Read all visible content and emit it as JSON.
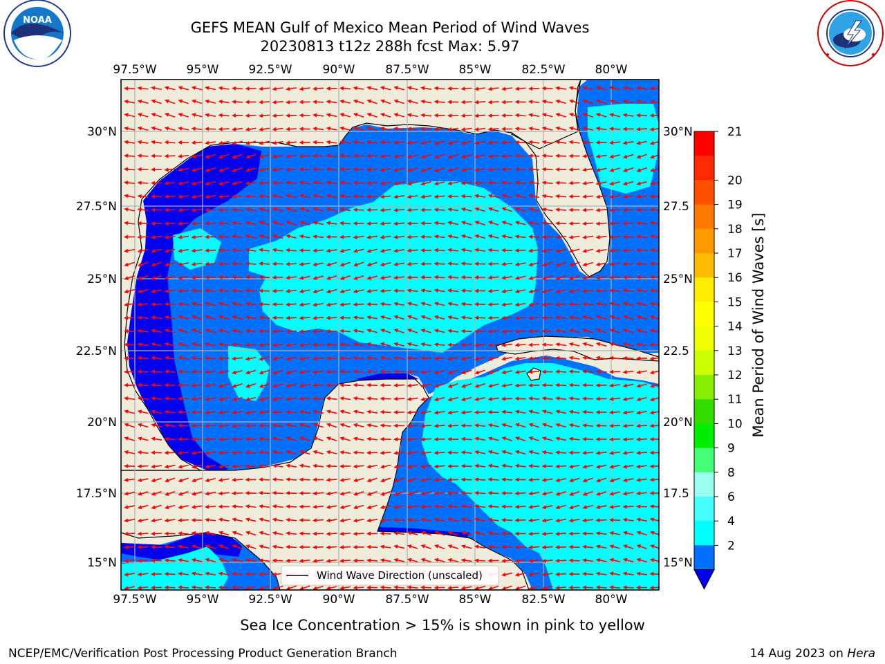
{
  "title": {
    "line1": "GEFS MEAN Gulf of Mexico Mean Period of Wind Waves",
    "line2": "20230813 t12z 288h fcst   Max: 5.97"
  },
  "logos": {
    "noaa_text": "NOAA",
    "noaa_ring": "NATIONAL OCEANIC AND ATMOSPHERIC ADMINISTRATION · U.S. DEPARTMENT OF COMMERCE",
    "nws_ring": "NATIONAL WEATHER SERVICE"
  },
  "map": {
    "lon_labels": [
      "97.5°W",
      "95°W",
      "92.5°W",
      "90°W",
      "87.5°W",
      "85°W",
      "82.5°W",
      "80°W"
    ],
    "lat_labels_left": [
      "30°N",
      "27.5°N",
      "25°N",
      "22.5°N",
      "20°N",
      "17.5°N",
      "15°N"
    ],
    "lat_labels_right": [
      "30°N",
      "27.5",
      "25°N",
      "22.5",
      "20°N",
      "17.5",
      "15°N"
    ],
    "legend_label": "Wind Wave Direction (unscaled)",
    "colors": {
      "land": "#efecdc",
      "period_2_4": "#0070ff",
      "period_4_6": "#00ffff",
      "under_2": "#0000ee",
      "arrow": "#ff0000",
      "grid": "#b0b0b0"
    }
  },
  "colorbar": {
    "label": "Mean Period of Wind Waves [s]",
    "ticks": [
      "21",
      "20",
      "19",
      "18",
      "17",
      "16",
      "15",
      "14",
      "13",
      "12",
      "11",
      "10",
      "9",
      "8",
      "6",
      "4",
      "2"
    ],
    "colors": [
      "#ff0000",
      "#ff2800",
      "#ff5000",
      "#ff7800",
      "#ff9900",
      "#ffbb00",
      "#ffee00",
      "#ffff00",
      "#eeff00",
      "#ccff00",
      "#88ee00",
      "#33dd00",
      "#00ee00",
      "#44ff77",
      "#99ffee",
      "#44ffff",
      "#00ffff",
      "#0070ff"
    ],
    "under_color": "#0000ee"
  },
  "footer": {
    "note": "Sea Ice Concentration > 15% is shown in pink to yellow",
    "left": "NCEP/EMC/Verification Post Processing Product Generation Branch",
    "right_date": "14 Aug 2023 on ",
    "right_host": "Hera"
  }
}
